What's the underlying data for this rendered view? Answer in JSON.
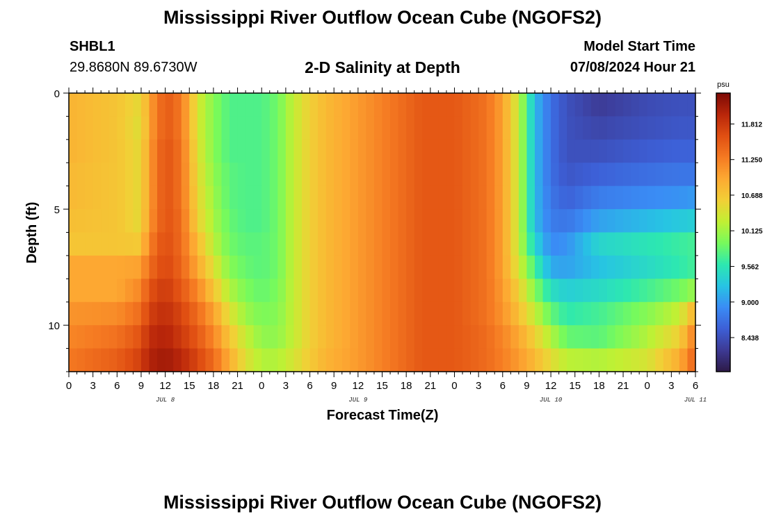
{
  "header": {
    "title": "Mississippi River Outflow Ocean Cube (NGOFS2)",
    "station_id": "SHBL1",
    "station_coords": "29.8680N  89.6730W",
    "subtitle": "2-D Salinity at Depth",
    "model_start_label": "Model Start Time",
    "model_start_value": "07/08/2024 Hour 21",
    "bottom_title": "Mississippi River Outflow Ocean Cube (NGOFS2)"
  },
  "chart_data": {
    "type": "heatmap",
    "title": "2-D Salinity at Depth",
    "xlabel": "Forecast Time(Z)",
    "ylabel": "Depth (ft)",
    "x_tick_labels": [
      "0",
      "3",
      "6",
      "9",
      "12",
      "15",
      "18",
      "21",
      "0",
      "3",
      "6",
      "9",
      "12",
      "15",
      "18",
      "21",
      "0",
      "3",
      "6",
      "9",
      "12",
      "15",
      "18",
      "21",
      "0",
      "3",
      "6"
    ],
    "x_start": "07/08/2024 Hour 0",
    "x_end": "07/11/2024 Hour 6",
    "x_unit": "hours",
    "date_labels": [
      {
        "label": "JUL 8",
        "hour": 12
      },
      {
        "label": "JUL 9",
        "hour": 36
      },
      {
        "label": "JUL 10",
        "hour": 60
      },
      {
        "label": "JUL 11",
        "hour": 78
      }
    ],
    "y_ticks": [
      0,
      5,
      10
    ],
    "ylim": [
      0,
      12
    ],
    "y_inverted": true,
    "colorbar": {
      "unit": "psu",
      "ticks": [
        8.438,
        9.0,
        9.562,
        10.125,
        10.688,
        11.25,
        11.812
      ],
      "min": 7.9,
      "max": 12.3,
      "colors": [
        "#2d1a47",
        "#3d3a94",
        "#3d5fd6",
        "#3a8cf5",
        "#27c4e3",
        "#2de8b0",
        "#77fa5c",
        "#c1f033",
        "#f2cf36",
        "#fda932",
        "#f57a22",
        "#e04f12",
        "#b9260a",
        "#7c0a05"
      ]
    },
    "depth_levels": [
      0.5,
      1.5,
      2.5,
      3.5,
      4.5,
      5.5,
      6.5,
      7.5,
      8.5,
      9.5,
      10.5,
      11.5
    ],
    "time_keypoints_hours": [
      0,
      6,
      9,
      10,
      12,
      14,
      16,
      18,
      20,
      22,
      24,
      26,
      28,
      30,
      32,
      36,
      40,
      44,
      48,
      52,
      54,
      56,
      58,
      60,
      62,
      66,
      72,
      76,
      78
    ],
    "salinity_psu_by_depth": [
      [
        10.85,
        10.7,
        10.5,
        11.0,
        11.55,
        11.3,
        10.4,
        10.0,
        9.75,
        9.75,
        9.75,
        9.9,
        10.3,
        10.6,
        10.8,
        11.05,
        11.3,
        11.55,
        11.55,
        11.35,
        11.0,
        10.3,
        9.2,
        8.7,
        8.45,
        8.25,
        8.4,
        8.45,
        8.45
      ],
      [
        10.85,
        10.7,
        10.45,
        11.0,
        11.55,
        11.3,
        10.4,
        10.0,
        9.75,
        9.75,
        9.75,
        9.9,
        10.3,
        10.6,
        10.8,
        11.05,
        11.3,
        11.55,
        11.55,
        11.35,
        11.0,
        10.3,
        9.2,
        8.7,
        8.45,
        8.35,
        8.45,
        8.5,
        8.5
      ],
      [
        10.85,
        10.7,
        10.5,
        11.05,
        11.6,
        11.35,
        10.45,
        10.0,
        9.75,
        9.75,
        9.75,
        9.9,
        10.3,
        10.6,
        10.8,
        11.05,
        11.3,
        11.55,
        11.55,
        11.35,
        11.0,
        10.3,
        9.2,
        8.7,
        8.45,
        8.45,
        8.55,
        8.6,
        8.6
      ],
      [
        10.8,
        10.7,
        10.5,
        11.05,
        11.6,
        11.35,
        10.5,
        10.05,
        9.8,
        9.75,
        9.75,
        9.9,
        10.3,
        10.6,
        10.8,
        11.05,
        11.3,
        11.55,
        11.55,
        11.35,
        11.0,
        10.3,
        9.2,
        8.7,
        8.5,
        8.6,
        8.7,
        8.75,
        8.75
      ],
      [
        10.8,
        10.7,
        10.5,
        11.05,
        11.6,
        11.35,
        10.55,
        10.1,
        9.8,
        9.75,
        9.75,
        9.9,
        10.3,
        10.6,
        10.8,
        11.05,
        11.3,
        11.55,
        11.55,
        11.35,
        11.0,
        10.3,
        9.2,
        8.75,
        8.6,
        8.8,
        8.9,
        8.95,
        9.0
      ],
      [
        10.75,
        10.7,
        10.5,
        11.1,
        11.6,
        11.4,
        10.6,
        10.15,
        9.85,
        9.75,
        9.75,
        9.9,
        10.3,
        10.6,
        10.8,
        11.05,
        11.3,
        11.55,
        11.55,
        11.35,
        11.0,
        10.3,
        9.2,
        8.8,
        8.75,
        9.05,
        9.2,
        9.3,
        9.35
      ],
      [
        10.7,
        10.7,
        10.65,
        11.25,
        11.65,
        11.4,
        10.8,
        10.25,
        9.9,
        9.8,
        9.8,
        9.9,
        10.3,
        10.6,
        10.8,
        11.05,
        11.3,
        11.55,
        11.55,
        11.35,
        11.0,
        10.3,
        9.4,
        8.9,
        8.95,
        9.4,
        9.55,
        9.65,
        9.7
      ],
      [
        10.95,
        10.95,
        11.0,
        11.4,
        11.7,
        11.45,
        10.95,
        10.45,
        10.0,
        9.85,
        9.8,
        9.9,
        10.3,
        10.6,
        10.8,
        11.05,
        11.3,
        11.55,
        11.55,
        11.35,
        11.0,
        10.4,
        9.7,
        9.1,
        9.05,
        9.25,
        9.45,
        9.6,
        9.7
      ],
      [
        10.95,
        10.95,
        11.2,
        11.6,
        11.8,
        11.55,
        11.2,
        10.7,
        10.2,
        9.95,
        9.85,
        9.95,
        10.3,
        10.6,
        10.8,
        11.05,
        11.3,
        11.55,
        11.55,
        11.35,
        11.05,
        10.6,
        10.0,
        9.5,
        9.35,
        9.45,
        9.7,
        9.9,
        10.1
      ],
      [
        11.1,
        11.15,
        11.4,
        11.75,
        11.9,
        11.7,
        11.4,
        11.0,
        10.45,
        10.1,
        9.95,
        10.0,
        10.3,
        10.6,
        10.8,
        11.05,
        11.3,
        11.55,
        11.55,
        11.35,
        11.1,
        10.75,
        10.3,
        9.85,
        9.6,
        9.7,
        10.0,
        10.3,
        10.9
      ],
      [
        11.2,
        11.35,
        11.6,
        11.9,
        12.0,
        11.8,
        11.55,
        11.2,
        10.7,
        10.3,
        10.05,
        10.05,
        10.3,
        10.6,
        10.8,
        11.05,
        11.3,
        11.55,
        11.55,
        11.4,
        11.2,
        10.95,
        10.6,
        10.2,
        9.85,
        9.8,
        10.2,
        10.6,
        11.3
      ],
      [
        11.3,
        11.5,
        11.75,
        12.0,
        12.1,
        11.95,
        11.7,
        11.4,
        10.9,
        10.45,
        10.2,
        10.2,
        10.4,
        10.65,
        10.85,
        11.05,
        11.3,
        11.55,
        11.55,
        11.4,
        11.25,
        11.05,
        10.8,
        10.5,
        10.25,
        10.2,
        10.4,
        10.9,
        11.5
      ]
    ]
  }
}
